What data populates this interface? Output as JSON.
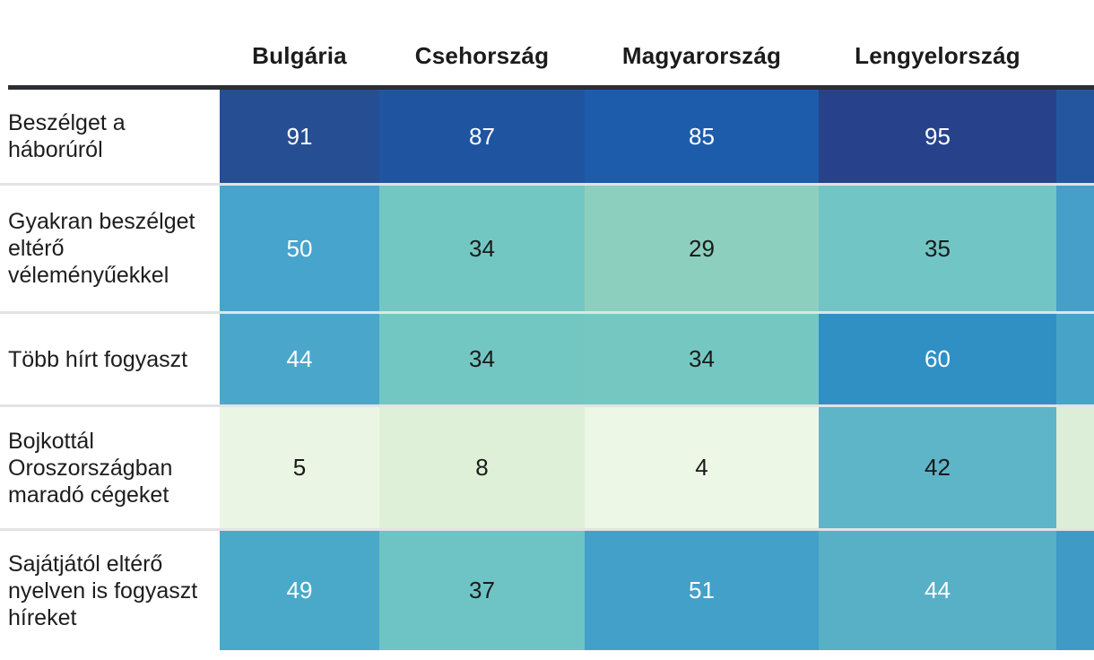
{
  "chart_data": {
    "type": "heatmap",
    "title": "",
    "columns": [
      "Bulgária",
      "Csehország",
      "Magyarország",
      "Lengyelország"
    ],
    "rows": [
      "Beszélget a háborúról",
      "Gyakran beszélget eltérő véleményűekkel",
      "Több hírt fogyaszt",
      "Bojkottál Oroszországban maradó cégeket",
      "Sajátjától eltérő nyelven is fogyaszt híreket"
    ],
    "values": [
      [
        91,
        87,
        85,
        95
      ],
      [
        50,
        34,
        29,
        35
      ],
      [
        44,
        34,
        34,
        60
      ],
      [
        5,
        8,
        4,
        42
      ],
      [
        49,
        37,
        51,
        44
      ]
    ],
    "clipped_fifth_column": true,
    "legend": "none",
    "grid": "off"
  },
  "table": {
    "header": {
      "labels": [
        "Bulgária",
        "Csehország",
        "Magyarország",
        "Lengyelország",
        ""
      ]
    },
    "rows": [
      {
        "label": "Beszélget a háborúról",
        "cells": [
          {
            "text": "91",
            "bg": "#254F92",
            "fg": "#FFFFFF"
          },
          {
            "text": "87",
            "bg": "#1F55A0",
            "fg": "#FFFFFF"
          },
          {
            "text": "85",
            "bg": "#1D5CAA",
            "fg": "#FFFFFF"
          },
          {
            "text": "95",
            "bg": "#27428B",
            "fg": "#FFFFFF"
          },
          {
            "text": "",
            "bg": "#2456A0",
            "fg": "#FFFFFF"
          }
        ]
      },
      {
        "label": "Gyakran beszélget eltérő véleményűekkel",
        "cells": [
          {
            "text": "50",
            "bg": "#47A4CC",
            "fg": "#FFFFFF"
          },
          {
            "text": "34",
            "bg": "#73C7C3",
            "fg": "#1A1A1A"
          },
          {
            "text": "29",
            "bg": "#8DCFBE",
            "fg": "#1A1A1A"
          },
          {
            "text": "35",
            "bg": "#72C5C5",
            "fg": "#1A1A1A"
          },
          {
            "text": "",
            "bg": "#459FC9",
            "fg": "#FFFFFF"
          }
        ]
      },
      {
        "label": "Több hírt fogyaszt",
        "cells": [
          {
            "text": "44",
            "bg": "#4AA7CB",
            "fg": "#FFFFFF"
          },
          {
            "text": "34",
            "bg": "#73C7C3",
            "fg": "#1A1A1A"
          },
          {
            "text": "34",
            "bg": "#75C8C2",
            "fg": "#1A1A1A"
          },
          {
            "text": "60",
            "bg": "#3090C4",
            "fg": "#FFFFFF"
          },
          {
            "text": "",
            "bg": "#47A4C8",
            "fg": "#FFFFFF"
          }
        ]
      },
      {
        "label": "Bojkottál Oroszországban maradó cégeket",
        "cells": [
          {
            "text": "5",
            "bg": "#EAF6E3",
            "fg": "#1A1A1A"
          },
          {
            "text": "8",
            "bg": "#DFF0D8",
            "fg": "#1A1A1A"
          },
          {
            "text": "4",
            "bg": "#ECF7E6",
            "fg": "#1A1A1A"
          },
          {
            "text": "42",
            "bg": "#5EB5C7",
            "fg": "#1A1A1A"
          },
          {
            "text": "",
            "bg": "#DDEED8",
            "fg": "#1A1A1A"
          }
        ]
      },
      {
        "label": "Sajátjától eltérő nyelven is fogyaszt híreket",
        "cells": [
          {
            "text": "49",
            "bg": "#4AA9C9",
            "fg": "#FFFFFF"
          },
          {
            "text": "37",
            "bg": "#6EC4C4",
            "fg": "#1A1A1A"
          },
          {
            "text": "51",
            "bg": "#43A0C9",
            "fg": "#FFFFFF"
          },
          {
            "text": "44",
            "bg": "#58B0C6",
            "fg": "#FFFFFF"
          },
          {
            "text": "",
            "bg": "#3F9AC6",
            "fg": "#FFFFFF"
          }
        ]
      }
    ]
  },
  "colors": {
    "header_rule": "#2B2E33",
    "header_text": "#1B1B1B",
    "label_text": "#1D1D1D",
    "background": "#FFFFFF"
  }
}
